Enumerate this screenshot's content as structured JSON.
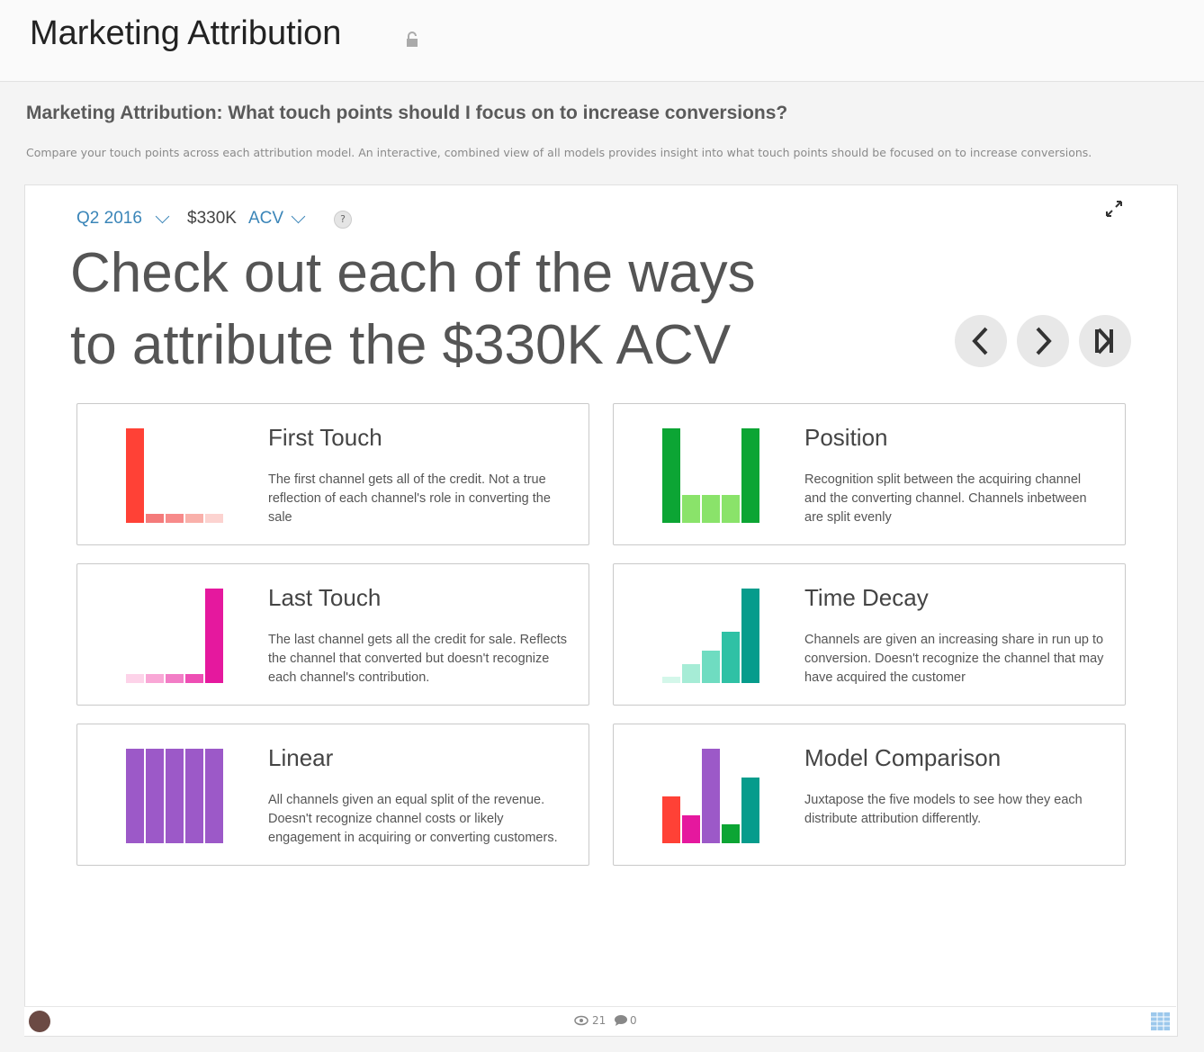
{
  "header": {
    "title": "Marketing Attribution"
  },
  "page": {
    "title": "Marketing Attribution: What touch points should I focus on to increase conversions?",
    "description": "Compare your touch points across each attribution model. An interactive, combined view of all models provides insight into what touch points should be focused on to increase conversions."
  },
  "controls": {
    "period": "Q2 2016",
    "amount": "$330K",
    "metric": "ACV",
    "help": "?"
  },
  "headline": [
    "Check out each of the ways",
    "to attribute the $330K ACV"
  ],
  "cards": [
    {
      "title": "First Touch",
      "description": "The first channel gets all of the credit. Not a true reflection of each channel's role in converting the sale"
    },
    {
      "title": "Position",
      "description": "Recognition split between the acquiring channel and the converting channel. Channels inbetween are split evenly"
    },
    {
      "title": "Last Touch",
      "description": "The last channel gets all the credit for sale. Reflects the channel that converted but doesn't recognize each channel's contribution."
    },
    {
      "title": "Time Decay",
      "description": "Channels are given an increasing share in run up to conversion. Doesn't recognize the channel that may have acquired the customer"
    },
    {
      "title": "Linear",
      "description": "All channels given an equal split of the revenue. Doesn't recognize channel costs or likely engagement in acquiring or converting customers."
    },
    {
      "title": "Model Comparison",
      "description": "Juxtapose the five models to see how they each distribute attribution differently."
    }
  ],
  "footer": {
    "views": 21,
    "comments": 0
  }
}
